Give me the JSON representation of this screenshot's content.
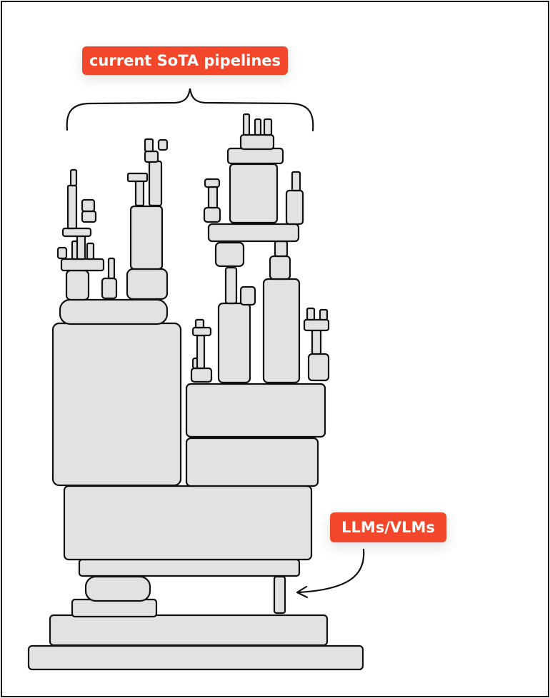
{
  "labels": {
    "sota": "current SoTA pipelines",
    "llm": "LLMs/VLMs"
  },
  "colors": {
    "label_bg": "#f2472a",
    "block_fill": "#e2e2e2",
    "block_stroke": "#111111"
  }
}
